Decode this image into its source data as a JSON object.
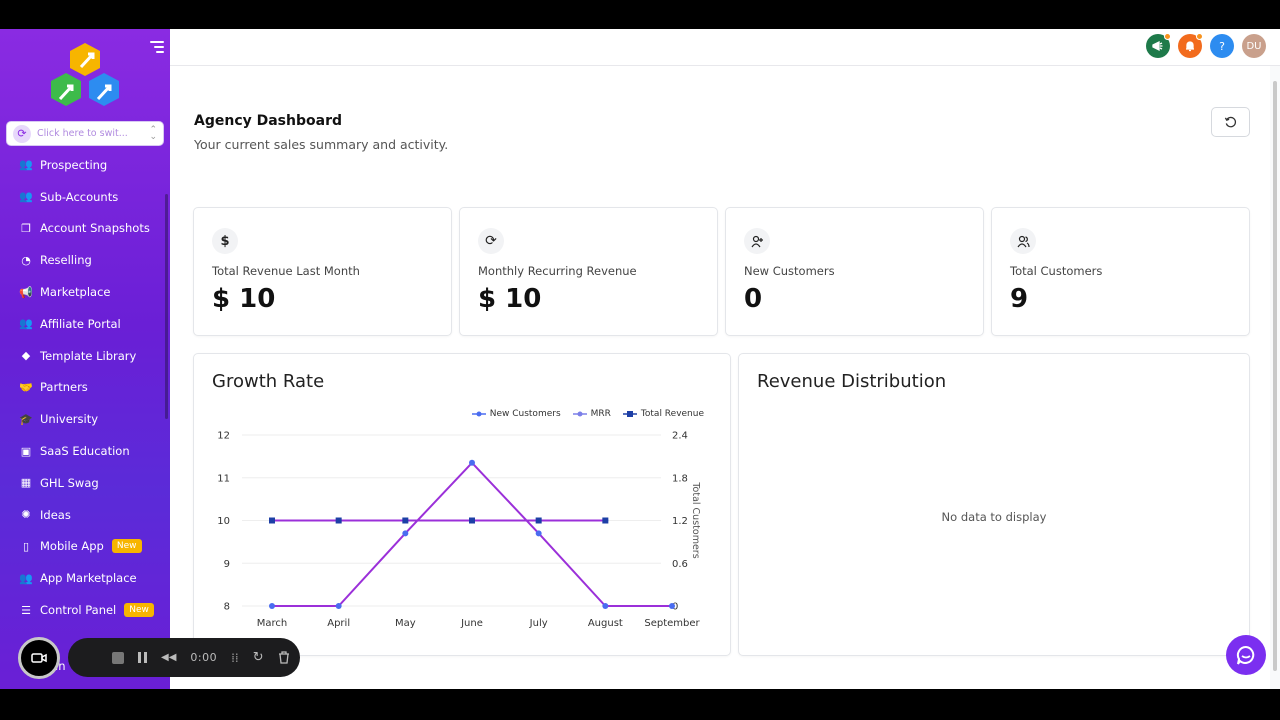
{
  "sidebar": {
    "switcher_placeholder": "Click here to swit...",
    "items": [
      {
        "label": "Prospecting",
        "icon": "prospecting-icon"
      },
      {
        "label": "Sub-Accounts",
        "icon": "users-icon"
      },
      {
        "label": "Account Snapshots",
        "icon": "copy-icon"
      },
      {
        "label": "Reselling",
        "icon": "pie-icon"
      },
      {
        "label": "Marketplace",
        "icon": "megaphone-icon"
      },
      {
        "label": "Affiliate Portal",
        "icon": "users-icon"
      },
      {
        "label": "Template Library",
        "icon": "shapes-icon"
      },
      {
        "label": "Partners",
        "icon": "handshake-icon"
      },
      {
        "label": "University",
        "icon": "graduation-cap-icon"
      },
      {
        "label": "SaaS Education",
        "icon": "education-icon"
      },
      {
        "label": "GHL Swag",
        "icon": "store-icon"
      },
      {
        "label": "Ideas",
        "icon": "lightbulb-icon"
      },
      {
        "label": "Mobile App",
        "icon": "mobile-icon",
        "badge": "New"
      },
      {
        "label": "App Marketplace",
        "icon": "users-icon"
      },
      {
        "label": "Control Panel",
        "icon": "sliders-icon",
        "badge": "New"
      }
    ],
    "settings_peek": "ttin"
  },
  "topbar": {
    "avatar_initials": "DU",
    "help_label": "?"
  },
  "header": {
    "title": "Agency Dashboard",
    "subtitle": "Your current sales summary and activity."
  },
  "stats": [
    {
      "label": "Total Revenue Last Month",
      "value": "$ 10",
      "icon": "dollar-icon"
    },
    {
      "label": "Monthly Recurring Revenue",
      "value": "$ 10",
      "icon": "recurring-icon"
    },
    {
      "label": "New Customers",
      "value": "0",
      "icon": "user-plus-icon"
    },
    {
      "label": "Total Customers",
      "value": "9",
      "icon": "users-icon"
    }
  ],
  "growth": {
    "title": "Growth Rate"
  },
  "revenue_distribution": {
    "title": "Revenue Distribution",
    "empty_text": "No data to display"
  },
  "recorder": {
    "time": "0:00"
  },
  "colors": {
    "sidebar_gradient_top": "#8a2be2",
    "sidebar_gradient_bottom": "#5b2bd8",
    "new_customers": "#9b30d9",
    "mrr": "#7b7fe8",
    "total_revenue": "#1d3fa6",
    "badge": "#f7b500"
  },
  "chart_data": {
    "type": "line",
    "categories": [
      "March",
      "April",
      "May",
      "June",
      "July",
      "August",
      "September"
    ],
    "series": [
      {
        "name": "New Customers",
        "axis": "left",
        "values": [
          8,
          8,
          9.7,
          11.35,
          9.7,
          8,
          8
        ],
        "marker": "circle"
      },
      {
        "name": "MRR",
        "axis": "left",
        "values": [
          10,
          10,
          10,
          10,
          10,
          10,
          null
        ],
        "marker": "circle"
      },
      {
        "name": "Total Revenue",
        "axis": "left",
        "values": [
          10,
          10,
          10,
          10,
          10,
          10,
          null
        ],
        "marker": "square"
      }
    ],
    "ylim": [
      8,
      12
    ],
    "yticks": [
      "8",
      "9",
      "10",
      "11",
      "12"
    ],
    "y2label": "Total Customers",
    "y2lim": [
      0,
      2.4
    ],
    "y2ticks": [
      "0",
      "0.6",
      "1.2",
      "1.8",
      "2.4"
    ],
    "legend": "top-right",
    "grid": true
  }
}
